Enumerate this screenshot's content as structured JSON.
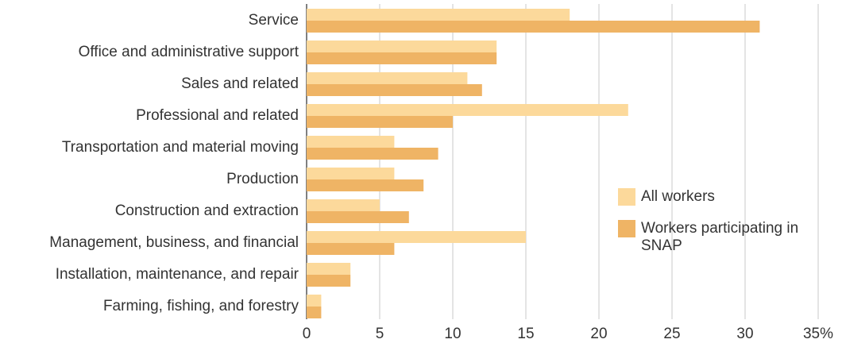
{
  "chart_data": {
    "type": "bar",
    "orientation": "horizontal",
    "categories": [
      "Service",
      "Office and administrative support",
      "Sales and related",
      "Professional and related",
      "Transportation and material moving",
      "Production",
      "Construction and extraction",
      "Management, business, and financial",
      "Installation, maintenance, and repair",
      "Farming, fishing, and forestry"
    ],
    "series": [
      {
        "name": "All workers",
        "color": "#fcd99b",
        "values": [
          18,
          13,
          11,
          22,
          6,
          6,
          5,
          15,
          3,
          1
        ]
      },
      {
        "name": "Workers participating in SNAP",
        "color": "#efb465",
        "values": [
          31,
          13,
          12,
          10,
          9,
          8,
          7,
          6,
          3,
          1
        ]
      }
    ],
    "xlim": [
      0,
      35
    ],
    "xticks": [
      0,
      5,
      10,
      15,
      20,
      25,
      30,
      {
        "value": 35,
        "label": "35%"
      }
    ],
    "grid": true
  }
}
